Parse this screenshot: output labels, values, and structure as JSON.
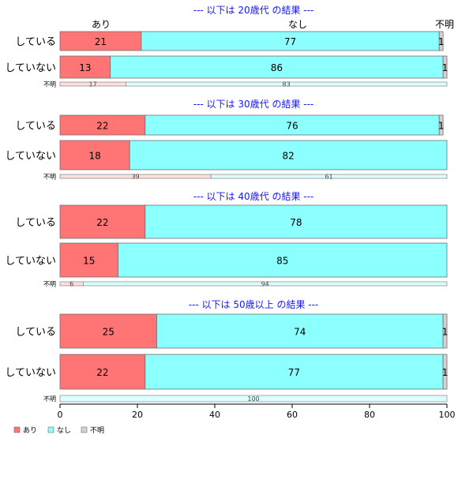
{
  "chart_data": {
    "type": "bar",
    "orientation": "horizontal",
    "stacked": true,
    "percent": true,
    "xlim": [
      0,
      100
    ],
    "x_ticks": [
      "0",
      "20",
      "40",
      "60",
      "80",
      "100"
    ],
    "column_labels": [
      "あり",
      "なし",
      "不明"
    ],
    "legend": {
      "placement": "bottom-left",
      "items": [
        {
          "label": "あり",
          "color": "#ff7575"
        },
        {
          "label": "なし",
          "color": "#8cffff"
        },
        {
          "label": "不明",
          "color": "#d3d3d3"
        }
      ]
    },
    "colors": {
      "title": "#1515ff",
      "bar_edge": "#707070",
      "unknown_row": "#ffdede",
      "unknown_row_none": "#dcffff"
    },
    "groups": [
      {
        "title": "--- 以下は 20歳代 の結果 ---",
        "rows": [
          {
            "label": "している",
            "values": [
              21,
              77,
              1
            ]
          },
          {
            "label": "していない",
            "values": [
              13,
              86,
              1
            ]
          }
        ],
        "unknown": {
          "label": "不明",
          "values": [
            17,
            83,
            0
          ]
        }
      },
      {
        "title": "--- 以下は 30歳代 の結果 ---",
        "rows": [
          {
            "label": "している",
            "values": [
              22,
              76,
              1
            ]
          },
          {
            "label": "していない",
            "values": [
              18,
              82,
              0
            ]
          }
        ],
        "unknown": {
          "label": "不明",
          "values": [
            39,
            61,
            0
          ]
        }
      },
      {
        "title": "--- 以下は 40歳代 の結果 ---",
        "rows": [
          {
            "label": "している",
            "values": [
              22,
              78,
              0
            ]
          },
          {
            "label": "していない",
            "values": [
              15,
              85,
              0
            ]
          }
        ],
        "unknown": {
          "label": "不明",
          "values": [
            6,
            94,
            0
          ]
        }
      },
      {
        "title": "--- 以下は 50歳以上 の結果 ---",
        "rows": [
          {
            "label": "している",
            "values": [
              25,
              74,
              1
            ]
          },
          {
            "label": "していない",
            "values": [
              22,
              77,
              1
            ]
          }
        ],
        "unknown": {
          "label": "不明",
          "values": [
            0,
            100,
            0
          ]
        }
      }
    ]
  }
}
